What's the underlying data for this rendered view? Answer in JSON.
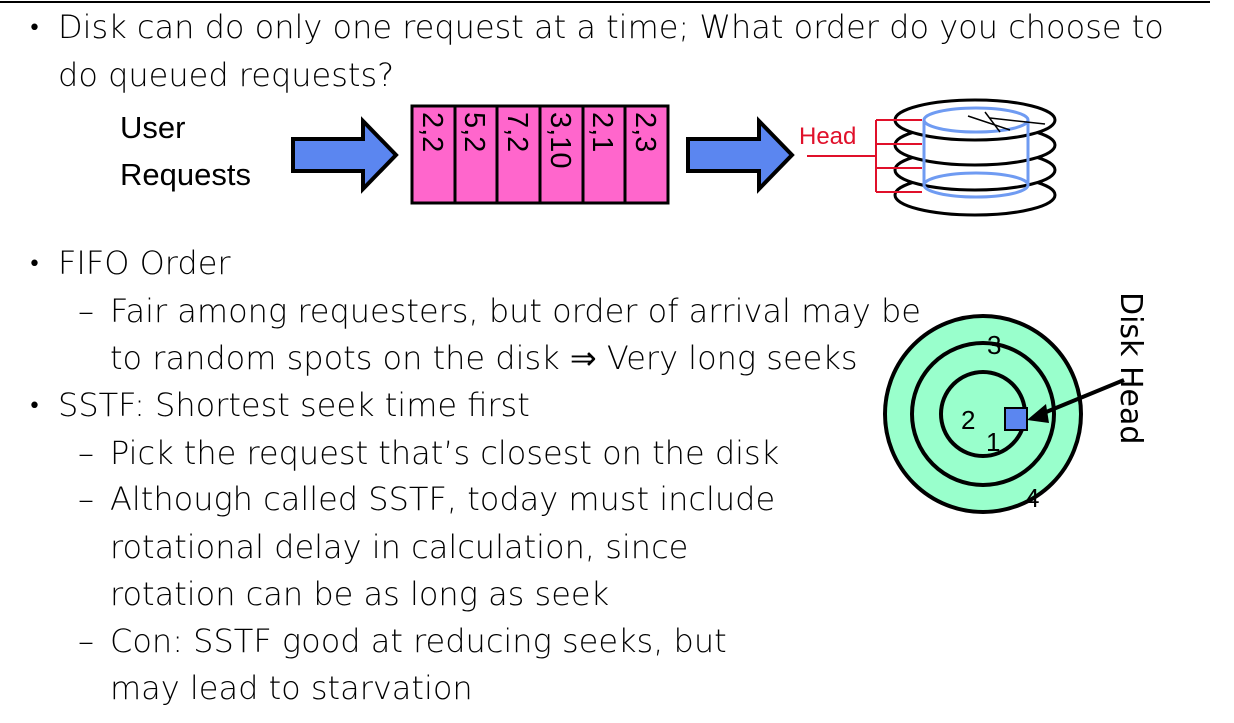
{
  "bullets": {
    "b1_line1": "Disk can do only one request at a time; What order do you choose to",
    "b1_line2": "do queued requests?",
    "b2": "FIFO Order",
    "b2_sub1_line1": "Fair among requesters, but order of arrival may be",
    "b2_sub1_line2": "to random spots on the disk ⇒ Very long seeks",
    "b3": "SSTF: Shortest seek time first",
    "b3_sub1": "Pick the request that’s closest on the disk",
    "b3_sub2_line1": "Although called SSTF, today must include",
    "b3_sub2_line2": "rotational delay in calculation, since",
    "b3_sub2_line3": "rotation can be as long as seek",
    "b3_sub3_line1": "Con: SSTF good at reducing seeks, but",
    "b3_sub3_line2": "may lead to starvation"
  },
  "diagram_queue": {
    "user_requests_line1": "User",
    "user_requests_line2": "Requests",
    "queue_items": [
      "2,2",
      "5,2",
      "7,2",
      "3,10",
      "2,1",
      "2,3"
    ],
    "head_label": "Head",
    "colors": {
      "queue_fill": "#ff66cc",
      "arrow_fill": "#5b86f0",
      "head_red": "#e0102a",
      "platter_blue": "#6f9bf2"
    }
  },
  "diagram_disk": {
    "track_labels": [
      "1",
      "2",
      "3",
      "4"
    ],
    "disk_head_label": "Disk Head",
    "colors": {
      "disk_fill": "#99ffcc",
      "head_square": "#5b86f0"
    }
  }
}
